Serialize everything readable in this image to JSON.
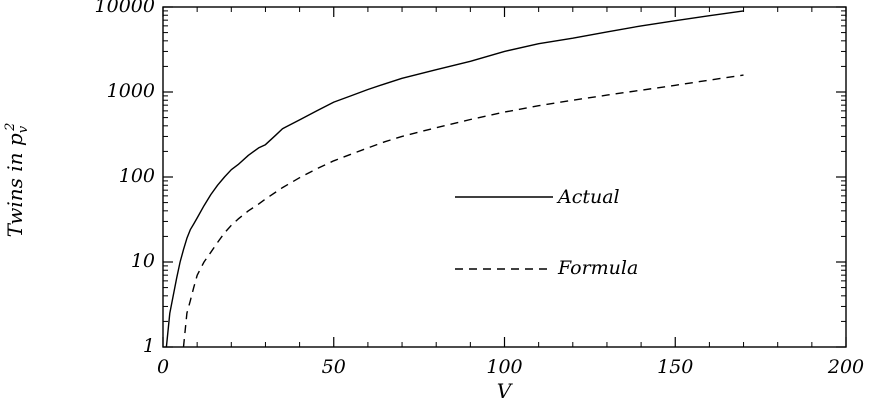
{
  "chart_data": {
    "type": "line",
    "title": "",
    "xlabel": "V",
    "ylabel": "Twins in p",
    "ylabel_sub": "v",
    "ylabel_sup": "2",
    "xlim": [
      0,
      200
    ],
    "ylim": [
      1,
      10000
    ],
    "yscale": "log",
    "grid": false,
    "legend_position": "center-right",
    "x_ticks": [
      0,
      50,
      100,
      150,
      200
    ],
    "x_tick_labels": [
      "0",
      "50",
      "100",
      "150",
      "200"
    ],
    "y_ticks": [
      1,
      10,
      100,
      1000,
      10000
    ],
    "y_tick_labels": [
      "1",
      "10",
      "100",
      "1000",
      "10000"
    ],
    "series": [
      {
        "name": "Actual",
        "style": "solid",
        "x": [
          1,
          2,
          3,
          4,
          5,
          6,
          7,
          8,
          9,
          10,
          12,
          14,
          16,
          18,
          20,
          22,
          25,
          28,
          30,
          33,
          35,
          40,
          45,
          50,
          55,
          60,
          65,
          70,
          80,
          90,
          100,
          110,
          120,
          130,
          140,
          150,
          160,
          170
        ],
        "y": [
          1,
          2.5,
          4,
          6.5,
          10,
          14,
          19,
          24,
          28,
          33,
          46,
          62,
          80,
          100,
          122,
          140,
          180,
          220,
          240,
          310,
          370,
          470,
          600,
          760,
          900,
          1070,
          1250,
          1450,
          1830,
          2300,
          3000,
          3700,
          4300,
          5100,
          6000,
          6900,
          7900,
          9000
        ]
      },
      {
        "name": "Formula",
        "style": "dashed",
        "x": [
          6,
          7,
          8,
          9,
          10,
          12,
          14,
          16,
          18,
          20,
          22,
          25,
          28,
          30,
          35,
          40,
          45,
          50,
          55,
          60,
          65,
          70,
          80,
          90,
          100,
          110,
          120,
          130,
          140,
          150,
          160,
          170
        ],
        "y": [
          1,
          2.5,
          3.5,
          5,
          7,
          10,
          13,
          17,
          22,
          27,
          32,
          40,
          48,
          55,
          75,
          98,
          125,
          155,
          185,
          220,
          260,
          300,
          380,
          475,
          580,
          690,
          800,
          920,
          1050,
          1200,
          1380,
          1580
        ]
      }
    ]
  }
}
